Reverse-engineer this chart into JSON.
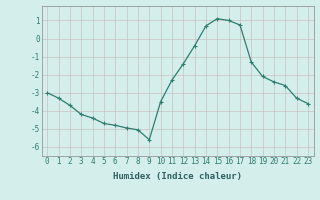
{
  "x": [
    0,
    1,
    2,
    3,
    4,
    5,
    6,
    7,
    8,
    9,
    10,
    11,
    12,
    13,
    14,
    15,
    16,
    17,
    18,
    19,
    20,
    21,
    22,
    23
  ],
  "y": [
    -3.0,
    -3.3,
    -3.7,
    -4.2,
    -4.4,
    -4.7,
    -4.8,
    -4.95,
    -5.05,
    -5.6,
    -3.5,
    -2.3,
    -1.4,
    -0.4,
    0.7,
    1.1,
    1.0,
    0.75,
    -1.3,
    -2.1,
    -2.4,
    -2.6,
    -3.3,
    -3.6
  ],
  "line_color": "#2e7d6e",
  "marker": "+",
  "marker_size": 3,
  "marker_lw": 0.8,
  "line_width": 0.9,
  "bg_color": "#d4eeec",
  "grid_color_major": "#c8b8b8",
  "grid_color_minor": "#d8e8e6",
  "xlabel": "Humidex (Indice chaleur)",
  "xlabel_fontsize": 6.5,
  "tick_fontsize": 5.5,
  "ylim": [
    -6.5,
    1.8
  ],
  "xlim": [
    -0.5,
    23.5
  ],
  "yticks": [
    1,
    0,
    -1,
    -2,
    -3,
    -4,
    -5,
    -6
  ],
  "xticks": [
    0,
    1,
    2,
    3,
    4,
    5,
    6,
    7,
    8,
    9,
    10,
    11,
    12,
    13,
    14,
    15,
    16,
    17,
    18,
    19,
    20,
    21,
    22,
    23
  ]
}
